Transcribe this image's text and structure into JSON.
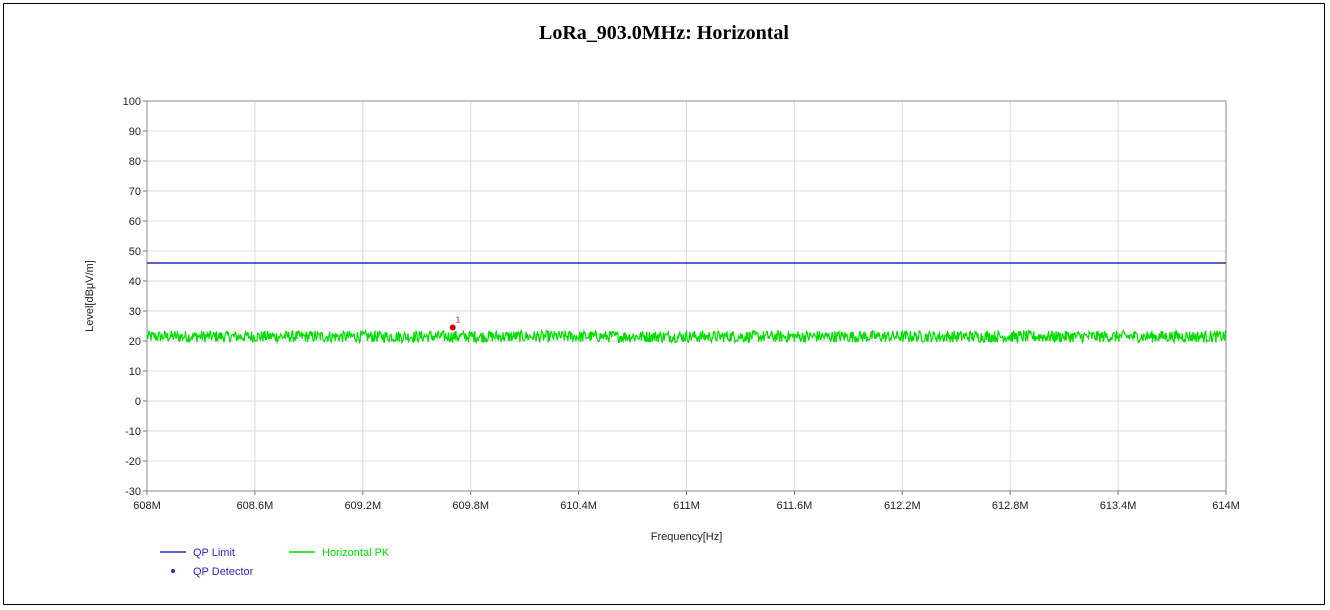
{
  "chart_data": {
    "type": "line",
    "title": "LoRa_903.0MHz: Horizontal",
    "xlabel": "Frequency[Hz]",
    "ylabel": "Level[dBμV/m]",
    "xlim": [
      608,
      614
    ],
    "ylim": [
      -30,
      100
    ],
    "x_tick_labels": [
      "608M",
      "608.6M",
      "609.2M",
      "609.8M",
      "610.4M",
      "611M",
      "611.6M",
      "612.2M",
      "612.8M",
      "613.4M",
      "614M"
    ],
    "y_tick_labels": [
      "100",
      "90",
      "80",
      "70",
      "60",
      "50",
      "40",
      "30",
      "20",
      "10",
      "0",
      "-10",
      "-20",
      "-30"
    ],
    "x_ticks_mhz": [
      608,
      608.6,
      609.2,
      609.8,
      610.4,
      611,
      611.6,
      612.2,
      612.8,
      613.4,
      614
    ],
    "y_ticks": [
      100,
      90,
      80,
      70,
      60,
      50,
      40,
      30,
      20,
      10,
      0,
      -10,
      -20,
      -30
    ],
    "grid": true,
    "series": [
      {
        "name": "QP Limit",
        "color": "#2b2bb8",
        "x": [
          608,
          614
        ],
        "values": [
          46,
          46
        ]
      },
      {
        "name": "Horizontal PK",
        "color": "#00dd00",
        "baseline": 21.5,
        "noise_amplitude": 2.0
      }
    ],
    "markers": [
      {
        "label": "1",
        "x": 609.7,
        "y": 24.5,
        "color": "#dd0000"
      }
    ],
    "legend": {
      "position": "bottom-left",
      "entries": [
        {
          "name": "QP Limit",
          "kind": "line",
          "color": "#2b2bb8"
        },
        {
          "name": "Horizontal PK",
          "kind": "line",
          "color": "#00dd00"
        },
        {
          "name": "QP Detector",
          "kind": "dot",
          "color": "#2b2bb8"
        }
      ]
    }
  }
}
